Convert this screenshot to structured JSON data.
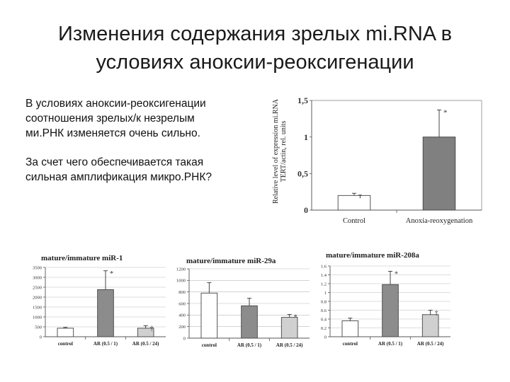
{
  "slide": {
    "title_line1": "Изменения содержания зрелых mi.RNA в",
    "title_line2": "условиях аноксии-реоксигенации",
    "para1_line1": "В условиях аноксии-реоксигенации",
    "para1_line2": "соотношения зрелых/к незрелым",
    "para1_line3": "ми.РНК изменяется очень сильно.",
    "para2_line1": "За счет чего обеспечивается такая",
    "para2_line2": "сильная амплификация микро.РНК?"
  },
  "chart_data": [
    {
      "type": "bar",
      "title": "",
      "ylabel": "Relative level of expression mi.RNA TERT/actin, rel. units",
      "categories": [
        "Control",
        "Anoxia-reoxygenation"
      ],
      "values": [
        0.2,
        1.0
      ],
      "errors": [
        0.03,
        0.37
      ],
      "markers": [
        "т",
        "*"
      ],
      "ylim": [
        0,
        1.5
      ],
      "yticks": [
        "0",
        "0,5",
        "1",
        "1,5"
      ],
      "ytick_values": [
        0,
        0.5,
        1,
        1.5
      ],
      "grid": false,
      "colors": [
        "#ffffff",
        "#808080"
      ]
    },
    {
      "type": "bar",
      "title": "mature/immature miR-1",
      "categories": [
        "control",
        "AR (0.5 / 1)",
        "AR (0.5 / 24)"
      ],
      "values": [
        430,
        2380,
        430
      ],
      "errors": [
        40,
        950,
        130
      ],
      "markers": [
        "",
        "*",
        "†"
      ],
      "ylim": [
        0,
        3500
      ],
      "yticks": [
        "0",
        "500",
        "1000",
        "1500",
        "2000",
        "2500",
        "3000",
        "3500"
      ],
      "ytick_values": [
        0,
        500,
        1000,
        1500,
        2000,
        2500,
        3000,
        3500
      ],
      "grid": true,
      "colors": [
        "#ffffff",
        "#8c8c8c",
        "#d0d0d0"
      ]
    },
    {
      "type": "bar",
      "title": "mature/immature miR-29a",
      "categories": [
        "control",
        "AR (0.5 / 1)",
        "AR (0.5 / 24)"
      ],
      "values": [
        780,
        560,
        360
      ],
      "errors": [
        180,
        130,
        50
      ],
      "markers": [
        "",
        "",
        "*"
      ],
      "ylim": [
        0,
        1200
      ],
      "yticks": [
        "0",
        "200",
        "400",
        "600",
        "800",
        "1000",
        "1200"
      ],
      "ytick_values": [
        0,
        200,
        400,
        600,
        800,
        1000,
        1200
      ],
      "grid": true,
      "colors": [
        "#ffffff",
        "#8c8c8c",
        "#d0d0d0"
      ]
    },
    {
      "type": "bar",
      "title": "mature/immature miR-208a",
      "categories": [
        "control",
        "AR (0.5 / 1)",
        "AR (0.5 / 24)"
      ],
      "values": [
        0.36,
        1.18,
        0.5
      ],
      "errors": [
        0.06,
        0.3,
        0.1
      ],
      "markers": [
        "",
        "*",
        "†"
      ],
      "ylim": [
        0,
        1.6
      ],
      "yticks": [
        "0",
        "0.2",
        "0.4",
        "0.6",
        "0.8",
        "1",
        "1.2",
        "1.4",
        "1.6"
      ],
      "ytick_values": [
        0,
        0.2,
        0.4,
        0.6,
        0.8,
        1,
        1.2,
        1.4,
        1.6
      ],
      "grid": true,
      "colors": [
        "#ffffff",
        "#8c8c8c",
        "#d0d0d0"
      ]
    }
  ]
}
